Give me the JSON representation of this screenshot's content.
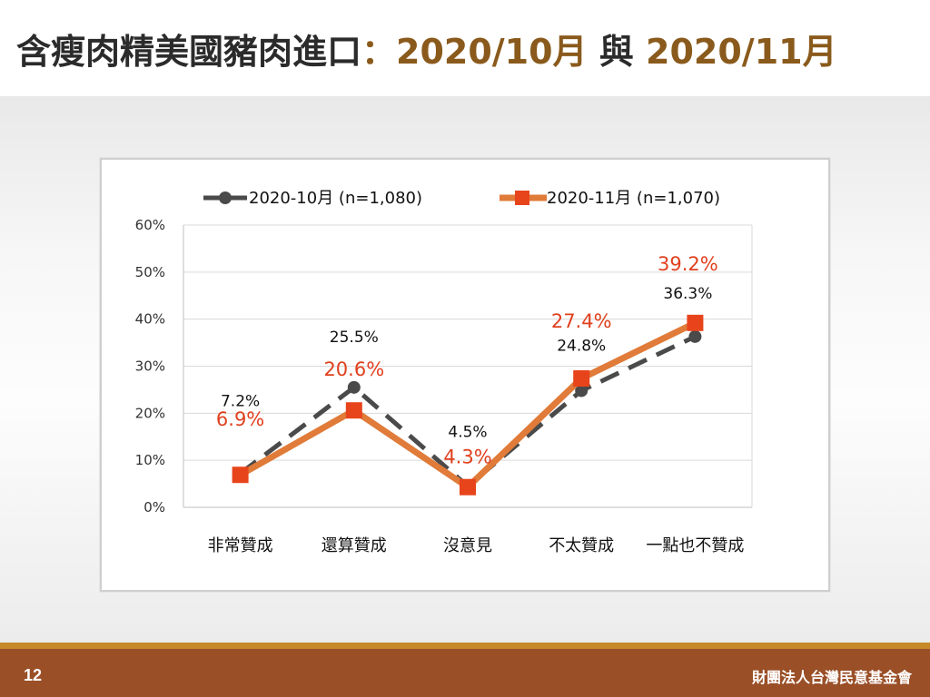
{
  "slide": {
    "title_main": "含瘦肉精美國豬肉進口",
    "title_sep": "：",
    "title_period_1": "2020/10月",
    "title_joiner": "與",
    "title_period_2": "2020/11月",
    "page_number": "12",
    "organization": "財團法人台灣民意基金會"
  },
  "colors": {
    "series_oct": "#4a4a4a",
    "series_nov": "#e07b39",
    "marker_nov": "#e8441c",
    "label_nov": "#e0401e",
    "title_accent": "#8a5a1c",
    "footer": "#9a4f27"
  },
  "chart_data": {
    "type": "line",
    "categories": [
      "非常贊成",
      "還算贊成",
      "沒意見",
      "不太贊成",
      "一點也不贊成"
    ],
    "ylim": [
      0,
      60
    ],
    "yticks": [
      "0%",
      "10%",
      "20%",
      "30%",
      "40%",
      "50%",
      "60%"
    ],
    "grid": true,
    "legend_position": "top",
    "series": [
      {
        "name": "2020-10月  (n=1,080)",
        "values": [
          7.2,
          25.5,
          4.5,
          24.8,
          36.3
        ],
        "labels": [
          "7.2%",
          "25.5%",
          "4.5%",
          "24.8%",
          "36.3%"
        ],
        "style": "dashed",
        "marker": "circle"
      },
      {
        "name": "2020-11月  (n=1,070)",
        "values": [
          6.9,
          20.6,
          4.3,
          27.4,
          39.2
        ],
        "labels": [
          "6.9%",
          "20.6%",
          "4.3%",
          "27.4%",
          "39.2%"
        ],
        "style": "solid",
        "marker": "square"
      }
    ]
  }
}
